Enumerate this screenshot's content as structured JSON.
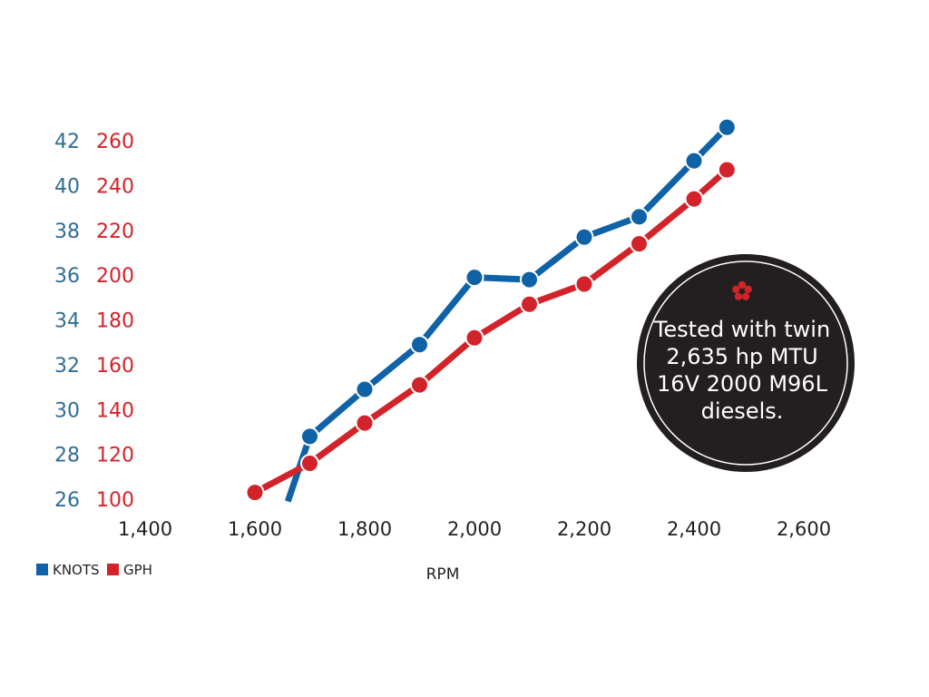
{
  "chart_data": {
    "type": "line",
    "xlabel": "RPM",
    "x_ticks": [
      "1,400",
      "1,600",
      "1,800",
      "2,000",
      "2,200",
      "2,400",
      "2,600"
    ],
    "xlim": [
      1400,
      2600
    ],
    "y_left": {
      "ticks": [
        "26",
        "28",
        "30",
        "32",
        "34",
        "36",
        "38",
        "40",
        "42"
      ],
      "ylim": [
        26,
        42
      ],
      "color": "#2f6e94"
    },
    "y_right": {
      "ticks": [
        "100",
        "120",
        "140",
        "160",
        "180",
        "200",
        "220",
        "240",
        "260"
      ],
      "ylim": [
        100,
        260
      ],
      "color": "#d2232a"
    },
    "grid": false,
    "legend_position": "bottom-left",
    "series": [
      {
        "name": "KNOTS",
        "axis": "left",
        "color": "#0f62a6",
        "x": [
          1660,
          1700,
          1800,
          1900,
          2000,
          2100,
          2200,
          2300,
          2400,
          2460
        ],
        "y": [
          25.9,
          28.8,
          30.9,
          32.9,
          35.9,
          35.8,
          37.7,
          38.6,
          41.1,
          42.6
        ]
      },
      {
        "name": "GPH",
        "axis": "right",
        "color": "#d2232a",
        "x": [
          1600,
          1700,
          1800,
          1900,
          2000,
          2100,
          2200,
          2300,
          2400,
          2460
        ],
        "y": [
          103,
          116,
          134,
          151,
          172,
          187,
          196,
          214,
          234,
          247
        ]
      }
    ]
  },
  "callout": {
    "lines": [
      "Tested with twin",
      "2,635 hp MTU",
      "16V 2000 M96L",
      "diesels."
    ],
    "icon": "asterisk-flower-icon",
    "background": "#231f20",
    "icon_color": "#d2232a"
  }
}
